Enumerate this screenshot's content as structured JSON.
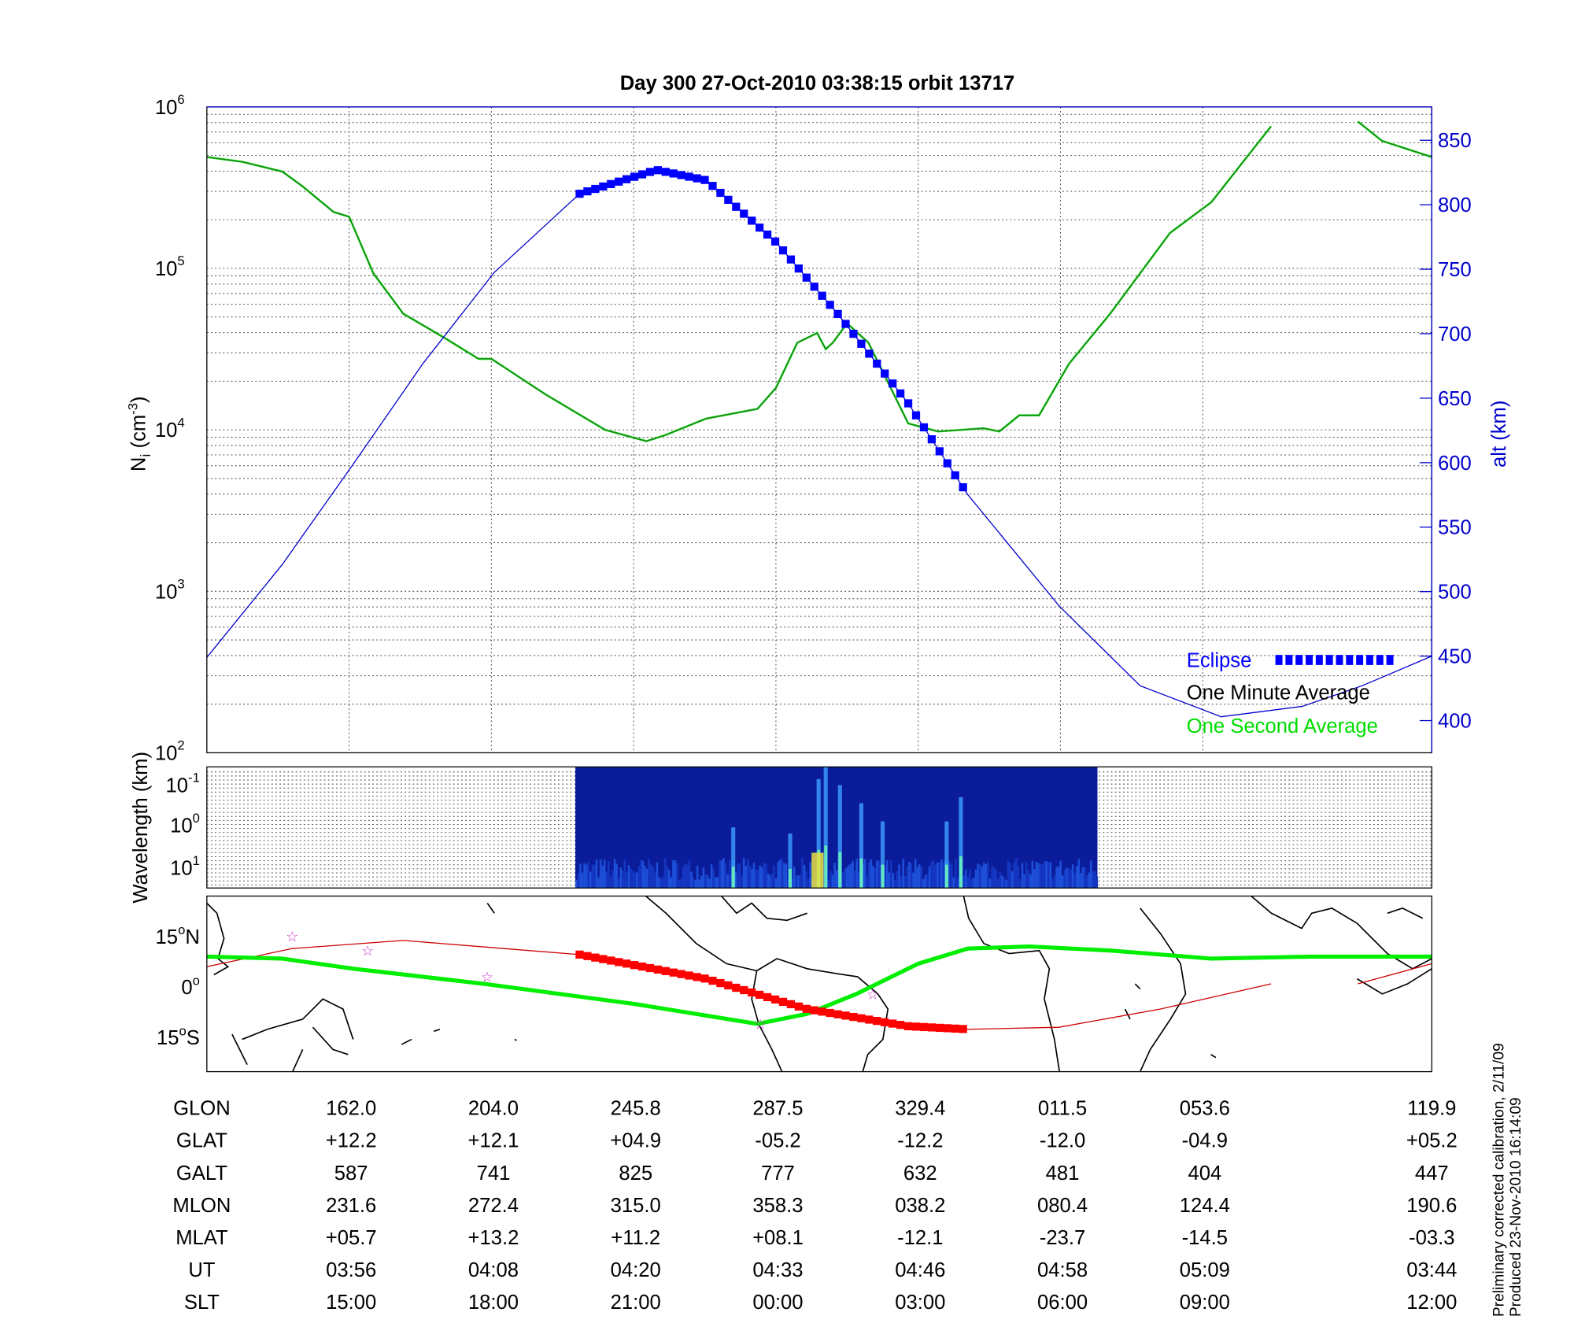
{
  "chart_data": [
    {
      "type": "line",
      "title": "Day 300  27-Oct-2010 03:38:15   orbit 13717",
      "ylabel": {
        "base": "N",
        "sub": "i",
        "unit": " (cm",
        "exp": "-3",
        "close": ")"
      },
      "y2label": "alt (km)",
      "yscale": "log",
      "ylim": [
        100,
        1000000
      ],
      "y2lim": [
        380,
        875
      ],
      "xlim": [
        0,
        8.61
      ],
      "x_unit": "tick intervals (columns of the ephemeris table)",
      "yticks": [
        {
          "base": "10",
          "exp": "6"
        },
        {
          "base": "10",
          "exp": "5"
        },
        {
          "base": "10",
          "exp": "4"
        },
        {
          "base": "10",
          "exp": "3"
        },
        {
          "base": "10",
          "exp": "2"
        }
      ],
      "y2ticks": [
        "850",
        "800",
        "750",
        "700",
        "650",
        "600",
        "550",
        "500",
        "450",
        "400"
      ],
      "grid": true,
      "legend": {
        "placement": "bottom-right",
        "entries": [
          {
            "label": "Eclipse",
            "color": "#0000ff"
          },
          {
            "label": "One Minute Average",
            "color": "#000000"
          },
          {
            "label": "One Second Average",
            "color": "#00dd00"
          }
        ]
      },
      "series": [
        {
          "name": "Ion density (log10 cm^-3)",
          "color": "#2a7a2a",
          "segments": [
            [
              [
                0,
                5.69
              ],
              [
                0.25,
                5.66
              ],
              [
                0.53,
                5.6
              ],
              [
                0.67,
                5.51
              ],
              [
                0.89,
                5.35
              ],
              [
                1.0,
                5.32
              ],
              [
                1.17,
                4.97
              ],
              [
                1.38,
                4.72
              ],
              [
                1.67,
                4.57
              ],
              [
                1.91,
                4.44
              ],
              [
                2.0,
                4.44
              ],
              [
                2.38,
                4.22
              ],
              [
                2.8,
                4.0
              ],
              [
                3.09,
                3.93
              ],
              [
                3.23,
                3.97
              ],
              [
                3.51,
                4.07
              ],
              [
                3.87,
                4.13
              ],
              [
                4.0,
                4.26
              ],
              [
                4.15,
                4.54
              ],
              [
                4.29,
                4.6
              ],
              [
                4.35,
                4.5
              ],
              [
                4.4,
                4.54
              ],
              [
                4.5,
                4.66
              ],
              [
                4.65,
                4.54
              ],
              [
                4.79,
                4.29
              ],
              [
                4.93,
                4.04
              ],
              [
                5.14,
                3.99
              ],
              [
                5.46,
                4.01
              ],
              [
                5.57,
                3.99
              ],
              [
                5.71,
                4.09
              ],
              [
                5.85,
                4.09
              ],
              [
                6.06,
                4.41
              ],
              [
                6.35,
                4.72
              ],
              [
                6.77,
                5.22
              ],
              [
                7.06,
                5.41
              ],
              [
                7.48,
                5.88
              ]
            ],
            [
              [
                8.09,
                5.91
              ],
              [
                8.26,
                5.79
              ],
              [
                8.61,
                5.69
              ]
            ]
          ]
        },
        {
          "name": "Altitude (km)",
          "color": "#0000cc",
          "points": [
            [
              0,
              449
            ],
            [
              0.53,
              521
            ],
            [
              1.03,
              599
            ],
            [
              1.52,
              677
            ],
            [
              2.02,
              747.5
            ],
            [
              2.62,
              808.5
            ],
            [
              3.16,
              827
            ],
            [
              3.51,
              819
            ],
            [
              4.0,
              771
            ],
            [
              4.43,
              716
            ],
            [
              4.93,
              646
            ],
            [
              5.35,
              575
            ],
            [
              5.99,
              489
            ],
            [
              6.56,
              427
            ],
            [
              7.13,
              403
            ],
            [
              7.7,
              411
            ],
            [
              8.12,
              427
            ],
            [
              8.61,
              450
            ]
          ]
        },
        {
          "name": "Eclipse",
          "color": "#0000ff",
          "x_range": [
            2.62,
            5.35
          ]
        }
      ]
    },
    {
      "type": "heatmap",
      "ylabel": "Wavelength (km)",
      "yticks": [
        {
          "base": "10",
          "exp": "-1"
        },
        {
          "base": "10",
          "exp": "0"
        },
        {
          "base": "10",
          "exp": "1"
        }
      ],
      "x_range": [
        2.59,
        6.26
      ],
      "bright_streaks": [
        [
          3.7,
          0.5
        ],
        [
          4.1,
          0.45
        ],
        [
          4.3,
          0.9
        ],
        [
          4.35,
          1.0
        ],
        [
          4.45,
          0.85
        ],
        [
          4.6,
          0.7
        ],
        [
          4.75,
          0.55
        ],
        [
          5.2,
          0.55
        ],
        [
          5.3,
          0.75
        ]
      ]
    },
    {
      "type": "line",
      "ylabel_ticks": [
        {
          "deg": "15",
          "hemi": "N"
        },
        {
          "deg": "0",
          "hemi": ""
        },
        {
          "deg": "15",
          "hemi": "S"
        }
      ],
      "series": [
        {
          "name": "Magnetic equator",
          "color": "#00ee00",
          "points": [
            [
              0,
              9
            ],
            [
              0.53,
              8.4
            ],
            [
              1.03,
              5.4
            ],
            [
              1.95,
              0.9
            ],
            [
              3.01,
              -5.1
            ],
            [
              3.87,
              -11
            ],
            [
              4.22,
              -8
            ],
            [
              4.57,
              -2
            ],
            [
              5.0,
              6.9
            ],
            [
              5.35,
              11.4
            ],
            [
              5.78,
              12
            ],
            [
              6.35,
              10.8
            ],
            [
              7.06,
              8.4
            ],
            [
              7.77,
              9
            ],
            [
              8.61,
              9
            ]
          ]
        },
        {
          "name": "Orbit track",
          "color": "#cc0000",
          "segments": [
            [
              [
                0,
                6
              ],
              [
                0.6,
                11.4
              ],
              [
                1.38,
                13.8
              ],
              [
                2.09,
                11.4
              ],
              [
                2.62,
                9.6
              ],
              [
                3.51,
                2.4
              ],
              [
                4.22,
                -6.6
              ],
              [
                4.93,
                -11.7
              ],
              [
                5.35,
                -12.6
              ],
              [
                5.99,
                -12
              ],
              [
                6.7,
                -6.6
              ],
              [
                7.48,
                0.9
              ]
            ],
            [
              [
                8.09,
                0.9
              ],
              [
                8.61,
                6.9
              ]
            ]
          ]
        },
        {
          "name": "Eclipse track",
          "color": "#ff0000",
          "x_range": [
            2.62,
            5.35
          ]
        },
        {
          "name": "Markers",
          "color": "#cc33cc",
          "points": [
            [
              0.6,
              15
            ],
            [
              1.13,
              10.8
            ],
            [
              1.97,
              3
            ],
            [
              4.68,
              -2.1
            ],
            [
              3.89,
              -11
            ]
          ]
        }
      ]
    },
    {
      "type": "table",
      "rows": [
        {
          "label": "GLON",
          "values": [
            "162.0",
            "204.0",
            "245.8",
            "287.5",
            "329.4",
            "011.5",
            "053.6",
            "119.9"
          ]
        },
        {
          "label": "GLAT",
          "values": [
            "+12.2",
            "+12.1",
            "+04.9",
            "-05.2",
            "-12.2",
            "-12.0",
            "-04.9",
            "+05.2"
          ]
        },
        {
          "label": "GALT",
          "values": [
            "587",
            "741",
            "825",
            "777",
            "632",
            "481",
            "404",
            "447"
          ]
        },
        {
          "label": "MLON",
          "values": [
            "231.6",
            "272.4",
            "315.0",
            "358.3",
            "038.2",
            "080.4",
            "124.4",
            "190.6"
          ]
        },
        {
          "label": "MLAT",
          "values": [
            "+05.7",
            "+13.2",
            "+11.2",
            "+08.1",
            "-12.1",
            "-23.7",
            "-14.5",
            "-03.3"
          ]
        },
        {
          "label": "UT",
          "values": [
            "03:56",
            "04:08",
            "04:20",
            "04:33",
            "04:46",
            "04:58",
            "05:09",
            "03:44"
          ]
        },
        {
          "label": "SLT",
          "values": [
            "15:00",
            "18:00",
            "21:00",
            "00:00",
            "03:00",
            "06:00",
            "09:00",
            "12:00"
          ]
        }
      ],
      "column_x": [
        1,
        2,
        3,
        4,
        5,
        6,
        7,
        8.61
      ]
    }
  ],
  "footer": {
    "line1": "Preliminary corrected calibration, 2/11/09",
    "line2": "Produced 23-Nov-2010 16:14:09"
  }
}
